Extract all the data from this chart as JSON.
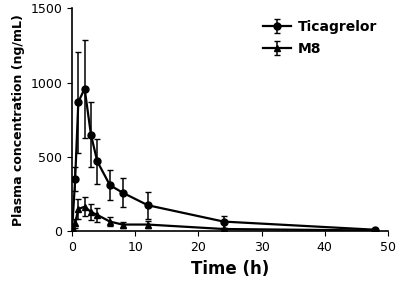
{
  "ticagrelor_time": [
    0,
    0.5,
    1,
    2,
    3,
    4,
    6,
    8,
    12,
    24,
    48
  ],
  "ticagrelor_mean": [
    0,
    350,
    870,
    960,
    650,
    470,
    310,
    260,
    175,
    65,
    10
  ],
  "ticagrelor_err": [
    0,
    80,
    340,
    330,
    220,
    150,
    100,
    100,
    90,
    40,
    8
  ],
  "m8_time": [
    0,
    0.5,
    1,
    2,
    3,
    4,
    6,
    8,
    12,
    24,
    48
  ],
  "m8_mean": [
    0,
    55,
    150,
    165,
    130,
    110,
    65,
    45,
    45,
    15,
    5
  ],
  "m8_err": [
    0,
    30,
    65,
    65,
    55,
    45,
    30,
    20,
    25,
    10,
    4
  ],
  "xlabel": "Time (h)",
  "ylabel": "Plasma concentration (ng/mL)",
  "xlim": [
    0,
    50
  ],
  "ylim": [
    0,
    1500
  ],
  "xticks": [
    0,
    10,
    20,
    30,
    40,
    50
  ],
  "yticks": [
    0,
    500,
    1000,
    1500
  ],
  "legend_ticagrelor": "Ticagrelor",
  "legend_m8": "M8",
  "line_color": "#000000",
  "background_color": "#ffffff",
  "marker_ticagrelor": "o",
  "marker_m8": "^",
  "markersize": 5,
  "linewidth": 1.6,
  "capsize": 2.5,
  "elinewidth": 1.1,
  "tick_labelsize": 9,
  "xlabel_fontsize": 12,
  "ylabel_fontsize": 9,
  "legend_fontsize": 10
}
